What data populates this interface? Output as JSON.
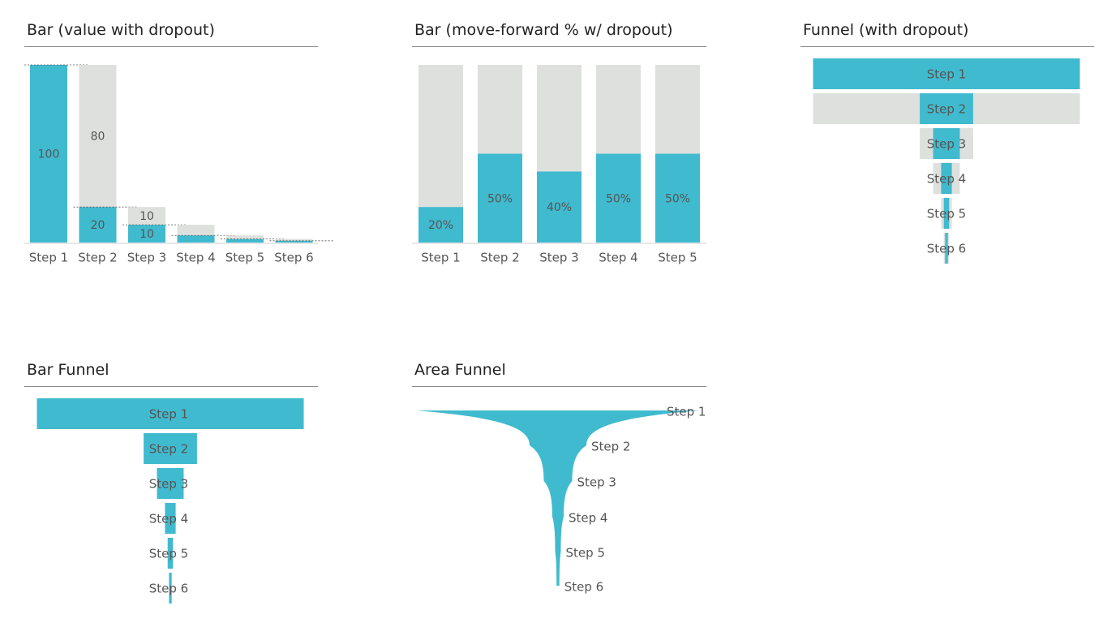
{
  "colors": {
    "accent": "#40BACE",
    "dropout": "#DEE0DD",
    "text": "#555555",
    "guide": "#555555"
  },
  "panels": {
    "bar_dropout": {
      "title": "Bar (value with dropout)"
    },
    "bar_pct": {
      "title": "Bar (move-forward % w/ dropout)"
    },
    "funnel_dropout": {
      "title": "Funnel (with dropout)"
    },
    "bar_funnel": {
      "title": "Bar Funnel"
    },
    "area_funnel": {
      "title": "Area Funnel"
    }
  },
  "chart_data": [
    {
      "id": "bar_dropout",
      "type": "bar",
      "title": "Bar (value with dropout)",
      "categories": [
        "Step 1",
        "Step 2",
        "Step 3",
        "Step 4",
        "Step 5",
        "Step 6"
      ],
      "series": [
        {
          "name": "",
          "values": [
            100,
            20,
            10,
            4,
            2,
            1
          ]
        },
        {
          "name": "",
          "values": [
            0,
            80,
            10,
            6,
            2,
            1
          ]
        }
      ],
      "labels_value": [
        "100",
        "20",
        "10",
        "",
        "",
        ""
      ],
      "labels_dropout": [
        "",
        "80",
        "10",
        "",
        "",
        ""
      ],
      "ylim": [
        0,
        100
      ]
    },
    {
      "id": "bar_pct",
      "type": "bar",
      "title": "Bar (move-forward % w/ dropout)",
      "categories": [
        "Step 1",
        "Step 2",
        "Step 3",
        "Step 4",
        "Step 5"
      ],
      "values": [
        20,
        50,
        40,
        50,
        50
      ],
      "labels": [
        "20%",
        "50%",
        "40%",
        "50%",
        "50%"
      ],
      "ylim": [
        0,
        100
      ]
    },
    {
      "id": "funnel_dropout",
      "type": "bar",
      "title": "Funnel (with dropout)",
      "categories": [
        "Step 1",
        "Step 2",
        "Step 3",
        "Step 4",
        "Step 5",
        "Step 6"
      ],
      "values": [
        100,
        20,
        10,
        4,
        2,
        1
      ]
    },
    {
      "id": "bar_funnel",
      "type": "bar",
      "title": "Bar Funnel",
      "categories": [
        "Step 1",
        "Step 2",
        "Step 3",
        "Step 4",
        "Step 5",
        "Step 6"
      ],
      "values": [
        100,
        20,
        10,
        4,
        2,
        1
      ]
    },
    {
      "id": "area_funnel",
      "type": "area",
      "title": "Area Funnel",
      "categories": [
        "Step 1",
        "Step 2",
        "Step 3",
        "Step 4",
        "Step 5",
        "Step 6"
      ],
      "values": [
        100,
        20,
        10,
        4,
        2,
        1
      ]
    }
  ]
}
